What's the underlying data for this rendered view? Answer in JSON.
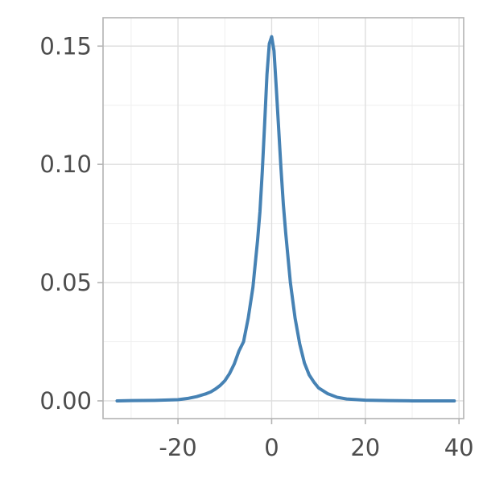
{
  "chart_data": {
    "type": "line",
    "title": "",
    "xlabel": "",
    "ylabel": "",
    "xlim": [
      -36,
      41
    ],
    "ylim": [
      -0.0075,
      0.162
    ],
    "x_ticks": [
      -20,
      0,
      20,
      40
    ],
    "x_tick_labels": [
      "-20",
      "0",
      "20",
      "40"
    ],
    "y_ticks": [
      0.0,
      0.05,
      0.1,
      0.15
    ],
    "y_tick_labels": [
      "0.00",
      "0.05",
      "0.10",
      "0.15"
    ],
    "grid": true,
    "legend": "none",
    "colors": {
      "line": "#4682b4",
      "panel_border": "#b3b3b3",
      "grid_major": "#dedede",
      "grid_minor": "#efefef",
      "tick_text": "#4d4d4d"
    },
    "series": [
      {
        "x": [
          -33,
          -30,
          -25,
          -20,
          -18,
          -16,
          -14,
          -13,
          -12,
          -11,
          -10,
          -9,
          -8,
          -7,
          -6,
          -5,
          -4,
          -3,
          -2.5,
          -2,
          -1.5,
          -1,
          -0.5,
          0,
          0.5,
          1,
          1.5,
          2,
          2.5,
          3,
          4,
          5,
          6,
          7,
          8,
          9,
          10,
          12,
          14,
          16,
          20,
          25,
          30,
          35,
          39
        ],
        "y": [
          0.0,
          0.0001,
          0.0002,
          0.0005,
          0.001,
          0.0018,
          0.003,
          0.0038,
          0.005,
          0.0065,
          0.0085,
          0.0115,
          0.0155,
          0.021,
          0.025,
          0.035,
          0.048,
          0.068,
          0.08,
          0.097,
          0.117,
          0.138,
          0.151,
          0.154,
          0.148,
          0.132,
          0.115,
          0.098,
          0.083,
          0.071,
          0.05,
          0.035,
          0.024,
          0.016,
          0.011,
          0.008,
          0.0055,
          0.003,
          0.0015,
          0.0008,
          0.0003,
          0.0001,
          0.0,
          0.0,
          0.0
        ]
      }
    ]
  }
}
